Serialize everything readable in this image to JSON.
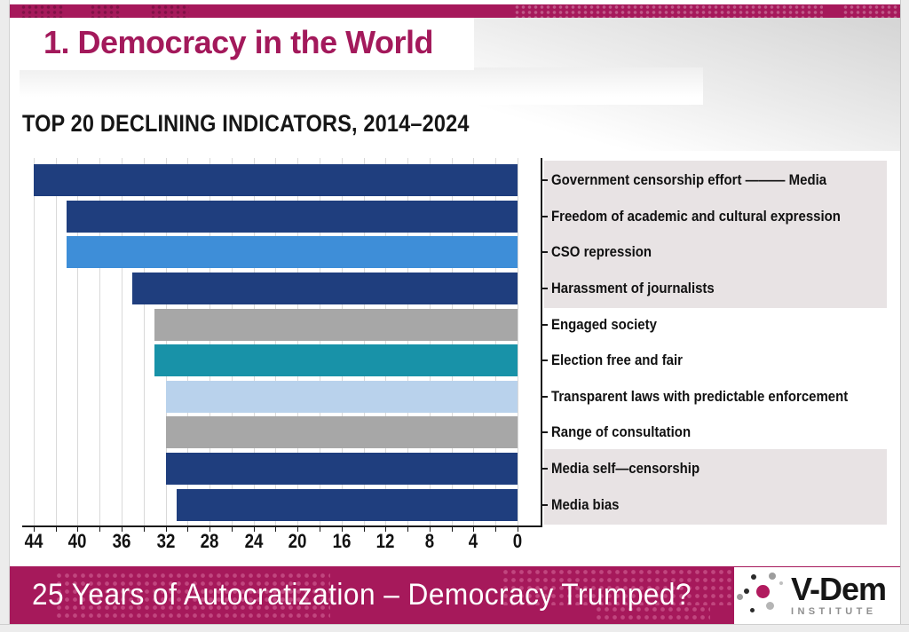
{
  "header": {
    "title": "1. Democracy in the World"
  },
  "chart_data": {
    "type": "bar",
    "orientation": "horizontal",
    "title": "TOP 20 DECLINING INDICATORS, 2014–2024",
    "xlabel": "",
    "ylabel": "",
    "legend": "none",
    "value_axis": {
      "min": 0,
      "max": 45,
      "reversed": true,
      "major_ticks": [
        44,
        40,
        36,
        32,
        28,
        24,
        20,
        16,
        12,
        8,
        4,
        0
      ],
      "minor_step": 2,
      "grid": true
    },
    "categories": [
      "Government censorship effort ——— Media",
      "Freedom of academic and cultural expression",
      "CSO repression",
      "Harassment of journalists",
      "Engaged society",
      "Election free and fair",
      "Transparent laws with predictable enforcement",
      "Range of consultation",
      "Media self—censorship",
      "Media bias"
    ],
    "values": [
      44,
      41,
      41,
      35,
      33,
      33,
      32,
      32,
      32,
      31
    ],
    "bar_colors": [
      "#1F3E7E",
      "#1F3E7E",
      "#3E8ED8",
      "#1F3E7E",
      "#A7A7A7",
      "#1892A8",
      "#B9D2EC",
      "#A7A7A7",
      "#1F3E7E",
      "#1F3E7E"
    ],
    "highlighted_rows": [
      0,
      1,
      2,
      3,
      8,
      9
    ],
    "highlight_color": "#E8E3E4"
  },
  "footer": {
    "text": "25 Years of Autocratization – Democracy Trumped?"
  },
  "logo": {
    "wordmark": "V-Dem",
    "subtitle": "INSTITUTE"
  },
  "colors": {
    "accent_magenta": "#A6195B",
    "title_magenta": "#A3195B",
    "axis_black": "#1A1A1A",
    "gridline": "#D9D9D9"
  }
}
